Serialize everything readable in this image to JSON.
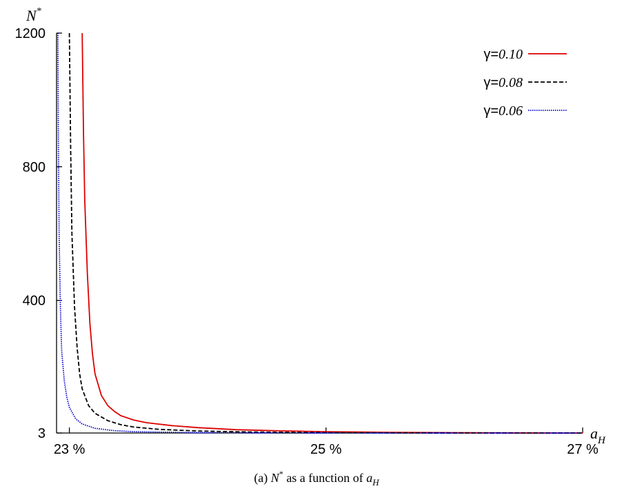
{
  "chart_data": {
    "type": "line",
    "title": "",
    "xlabel": "a",
    "xlabel_sub": "H",
    "ylabel": "N",
    "ylabel_sup": "*",
    "xlim": [
      22.9,
      27.0
    ],
    "ylim": [
      3,
      1200
    ],
    "x_ticks": [
      {
        "value": 23,
        "label": "23 %"
      },
      {
        "value": 25,
        "label": "25 %"
      },
      {
        "value": 27,
        "label": "27 %"
      }
    ],
    "y_ticks": [
      {
        "value": 3,
        "label": "3"
      },
      {
        "value": 400,
        "label": "400"
      },
      {
        "value": 800,
        "label": "800"
      },
      {
        "value": 1200,
        "label": "1200"
      }
    ],
    "grid": false,
    "legend_position": "top-right",
    "series": [
      {
        "name": "γ=0.10",
        "name_prefix": "γ=",
        "name_value": "0.10",
        "color": "#dd0000",
        "style": "solid",
        "x": [
          23.1,
          23.11,
          23.12,
          23.14,
          23.16,
          23.18,
          23.2,
          23.25,
          23.3,
          23.35,
          23.4,
          23.5,
          23.6,
          23.8,
          24.0,
          24.3,
          24.6,
          25.0,
          25.5,
          26.0,
          26.5,
          27.0
        ],
        "y": [
          1200,
          900,
          700,
          480,
          330,
          240,
          180,
          115,
          85,
          68,
          55,
          42,
          34,
          25,
          19,
          13,
          10,
          7,
          5,
          4,
          3.5,
          3
        ]
      },
      {
        "name": "γ=0.08",
        "name_prefix": "γ=",
        "name_value": "0.08",
        "color": "#000000",
        "style": "dashed",
        "x": [
          23.0,
          23.01,
          23.02,
          23.04,
          23.06,
          23.08,
          23.1,
          23.15,
          23.2,
          23.3,
          23.4,
          23.5,
          23.7,
          24.0,
          24.4,
          25.0,
          25.5,
          26.0,
          27.0
        ],
        "y": [
          1200,
          850,
          600,
          380,
          260,
          180,
          135,
          85,
          62,
          40,
          28,
          21,
          14,
          9,
          6,
          4,
          3.5,
          3,
          3
        ]
      },
      {
        "name": "γ=0.06",
        "name_prefix": "γ=",
        "name_value": "0.06",
        "color": "#0000cc",
        "style": "dotted",
        "x": [
          22.91,
          22.915,
          22.92,
          22.93,
          22.94,
          22.96,
          22.98,
          23.0,
          23.05,
          23.1,
          23.2,
          23.35,
          23.5,
          24.0,
          25.0,
          27.0
        ],
        "y": [
          1200,
          850,
          600,
          380,
          250,
          160,
          110,
          80,
          45,
          30,
          17,
          10,
          7,
          4,
          3,
          3
        ]
      }
    ]
  },
  "caption": {
    "prefix": "(a) ",
    "n": "N",
    "n_sup": "*",
    "middle": " as a function of ",
    "a": "a",
    "a_sub": "H"
  }
}
